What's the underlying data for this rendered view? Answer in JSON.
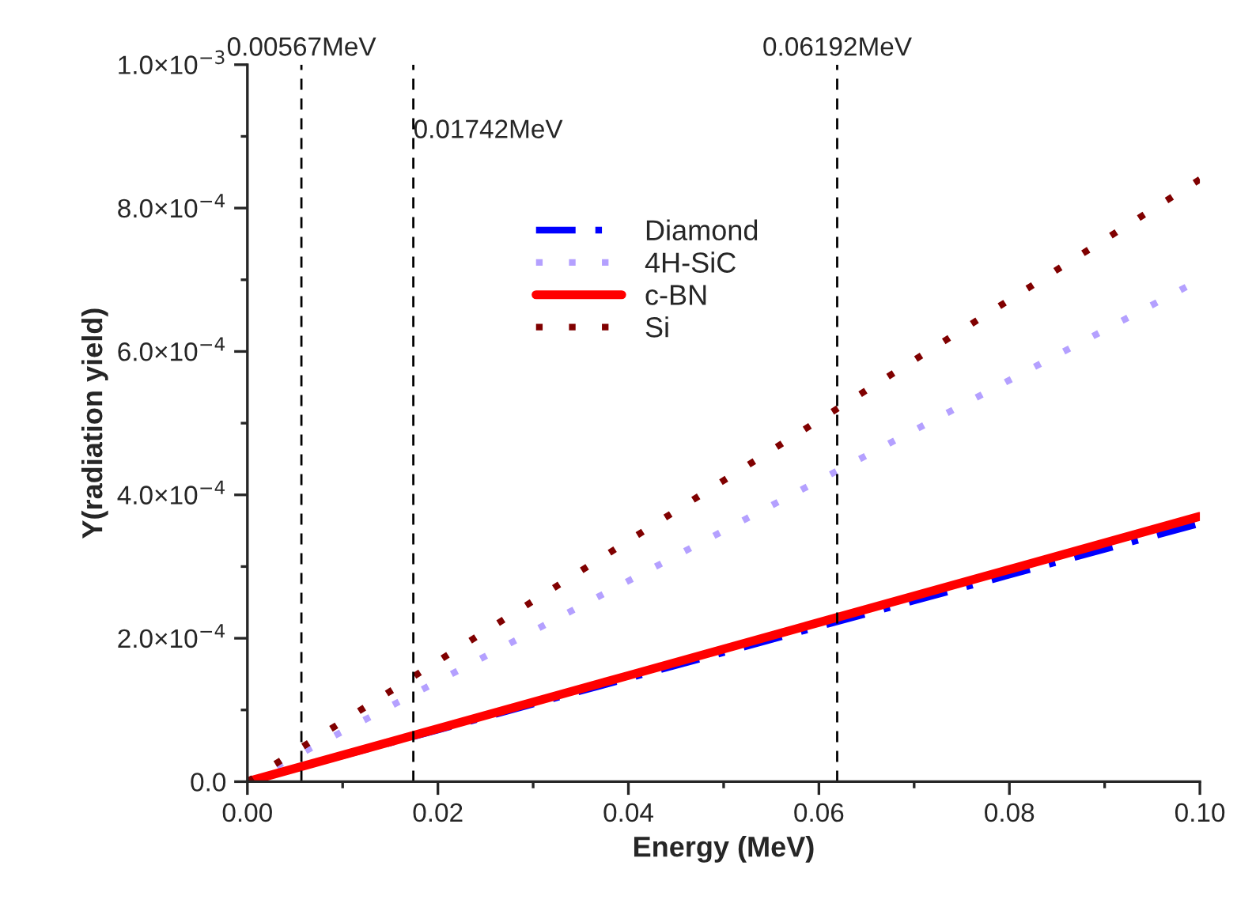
{
  "chart_data": {
    "type": "line",
    "xlabel": "Energy (MeV)",
    "ylabel": "Y(radiation yield)",
    "x": [
      0,
      0.02,
      0.04,
      0.06,
      0.08,
      0.1
    ],
    "series": [
      {
        "name": "Diamond",
        "color": "#0000ff",
        "line_style": "dashed",
        "values": [
          0,
          7.2e-05,
          0.000144,
          0.000216,
          0.000288,
          0.00036
        ]
      },
      {
        "name": "4H-SiC",
        "color": "#b4a0ff",
        "line_style": "dotted",
        "values": [
          0,
          0.00014,
          0.00028,
          0.00042,
          0.00056,
          0.0007
        ]
      },
      {
        "name": "c-BN",
        "color": "#ff0000",
        "line_style": "solid",
        "values": [
          0,
          7.4e-05,
          0.000148,
          0.000222,
          0.000296,
          0.00037
        ]
      },
      {
        "name": "Si",
        "color": "#800000",
        "line_style": "dotted",
        "values": [
          0,
          0.000168,
          0.000336,
          0.000504,
          0.000672,
          0.00084
        ]
      }
    ],
    "xlim": [
      0,
      0.1
    ],
    "xticks": [
      {
        "value": 0,
        "label": "0.00"
      },
      {
        "value": 0.02,
        "label": "0.02"
      },
      {
        "value": 0.04,
        "label": "0.04"
      },
      {
        "value": 0.06,
        "label": "0.06"
      },
      {
        "value": 0.08,
        "label": "0.08"
      },
      {
        "value": 0.1,
        "label": "0.10"
      }
    ],
    "ylim": [
      0,
      0.001
    ],
    "yticks": [
      {
        "value": 0,
        "label": "0.0"
      },
      {
        "value": 0.0002,
        "label": "2.0×10$^{−4}$"
      },
      {
        "value": 0.0004,
        "label": "4.0×10$^{−4}$"
      },
      {
        "value": 0.0006,
        "label": "6.0×10$^{−4}$"
      },
      {
        "value": 0.0008,
        "label": "8.0×10$^{−4}$"
      },
      {
        "value": 0.001,
        "label": "1.0×10$^{−3}$"
      }
    ],
    "ref_lines": [
      {
        "axis": "x",
        "value": 0.00567,
        "label": "0.00567MeV",
        "color": "#000000",
        "line_style": "dashed"
      },
      {
        "axis": "x",
        "value": 0.01742,
        "label": "0.01742MeV",
        "color": "#000000",
        "line_style": "dashed"
      },
      {
        "axis": "x",
        "value": 0.06192,
        "label": "0.06192MeV",
        "color": "#000000",
        "line_style": "dashed"
      }
    ],
    "legend": "top center",
    "grid": false,
    "marker": "none"
  }
}
